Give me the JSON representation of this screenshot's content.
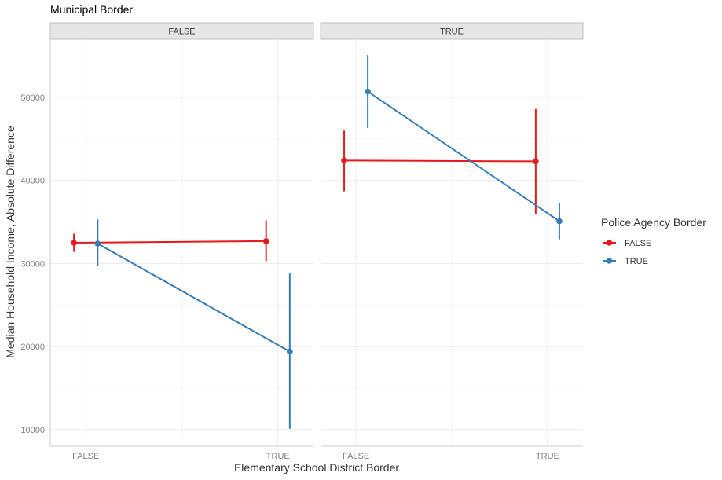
{
  "chart_data": {
    "type": "line",
    "title": "Municipal Border",
    "xlabel": "Elementary School District Border",
    "ylabel": "Median Household Income, Absolute Difference",
    "categories": [
      "FALSE",
      "TRUE"
    ],
    "ylim": [
      8000,
      57000
    ],
    "y_ticks": [
      10000,
      20000,
      30000,
      40000,
      50000
    ],
    "y_tick_labels": [
      "10000",
      "20000",
      "30000",
      "40000",
      "50000"
    ],
    "grid": true,
    "legend": {
      "title": "Police Agency Border",
      "placement": "right",
      "entries": [
        {
          "label": "FALSE",
          "color": "#e41a1c"
        },
        {
          "label": "TRUE",
          "color": "#377eb8"
        }
      ]
    },
    "panels": [
      {
        "facet_label": "FALSE",
        "series": [
          {
            "name": "FALSE",
            "color": "#e41a1c",
            "points": [
              {
                "x": "FALSE",
                "y": 32500,
                "ymin": 31400,
                "ymax": 33600
              },
              {
                "x": "TRUE",
                "y": 32700,
                "ymin": 30300,
                "ymax": 35200
              }
            ]
          },
          {
            "name": "TRUE",
            "color": "#377eb8",
            "points": [
              {
                "x": "FALSE",
                "y": 32400,
                "ymin": 29700,
                "ymax": 35300
              },
              {
                "x": "TRUE",
                "y": 19400,
                "ymin": 10100,
                "ymax": 28800
              }
            ]
          }
        ]
      },
      {
        "facet_label": "TRUE",
        "series": [
          {
            "name": "FALSE",
            "color": "#e41a1c",
            "points": [
              {
                "x": "FALSE",
                "y": 42400,
                "ymin": 38700,
                "ymax": 46000
              },
              {
                "x": "TRUE",
                "y": 42300,
                "ymin": 36000,
                "ymax": 48600
              }
            ]
          },
          {
            "name": "TRUE",
            "color": "#377eb8",
            "points": [
              {
                "x": "FALSE",
                "y": 50700,
                "ymin": 46300,
                "ymax": 55100
              },
              {
                "x": "TRUE",
                "y": 35100,
                "ymin": 32900,
                "ymax": 37300
              }
            ]
          }
        ]
      }
    ]
  }
}
